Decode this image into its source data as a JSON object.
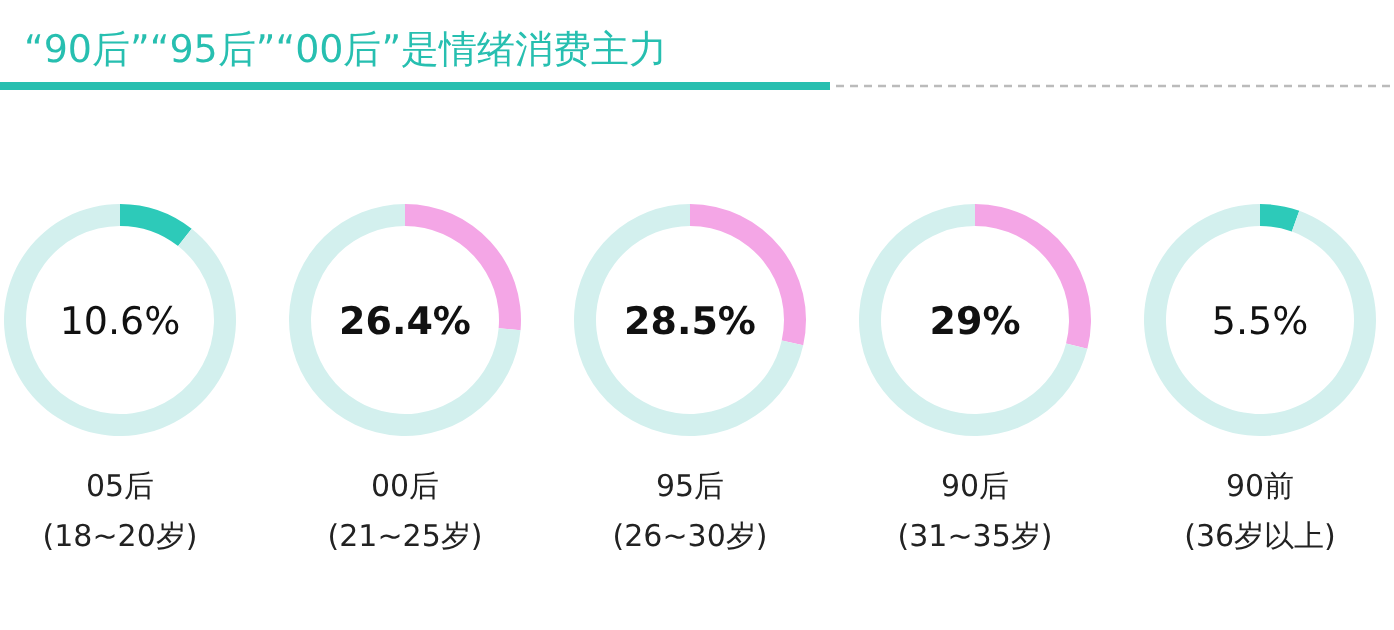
{
  "chart_data": [
    {
      "type": "other",
      "title": "“90后”“95后”“00后”是情绪消费主力"
    },
    {
      "type": "donut",
      "title": "05后",
      "subtitle": "(18~20岁)",
      "categories": [
        null,
        null
      ],
      "values": [
        10.6,
        89.4
      ],
      "colors": [
        "#2dcab9",
        "#d3f0ee"
      ],
      "annotations": [
        "10.6%"
      ]
    },
    {
      "type": "donut",
      "title": "00后",
      "subtitle": "(21~25岁)",
      "categories": [
        null,
        null
      ],
      "values": [
        26.4,
        73.6
      ],
      "colors": [
        "#f4a6e6",
        "#d3f0ee"
      ],
      "annotations": [
        "26.4%"
      ]
    },
    {
      "type": "donut",
      "title": "95后",
      "subtitle": "(26~30岁)",
      "categories": [
        null,
        null
      ],
      "values": [
        28.5,
        71.5
      ],
      "colors": [
        "#f4a6e6",
        "#d3f0ee"
      ],
      "annotations": [
        "28.5%"
      ]
    },
    {
      "type": "donut",
      "title": "90后",
      "subtitle": "(31~35岁)",
      "categories": [
        null,
        null
      ],
      "values": [
        29,
        71
      ],
      "colors": [
        "#f4a6e6",
        "#d3f0ee"
      ],
      "annotations": [
        "29%"
      ]
    },
    {
      "type": "donut",
      "title": "90前",
      "subtitle": "(36岁以上)",
      "categories": [
        null,
        null
      ],
      "values": [
        5.5,
        94.5
      ],
      "colors": [
        "#2dcab9",
        "#d3f0ee"
      ],
      "annotations": [
        "5.5%"
      ]
    }
  ]
}
